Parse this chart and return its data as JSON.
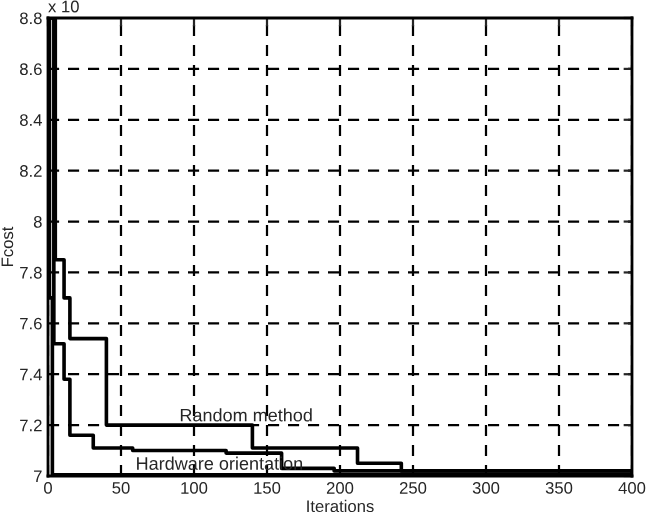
{
  "chart_data": {
    "type": "step",
    "xlabel": "Iterations",
    "ylabel": "Fcost",
    "xlim": [
      0,
      400
    ],
    "ylim": [
      7,
      8.8
    ],
    "xticks": [
      0,
      50,
      100,
      150,
      200,
      250,
      300,
      350,
      400
    ],
    "yticks": [
      7,
      7.2,
      7.4,
      7.6,
      7.8,
      8,
      8.2,
      8.4,
      8.6,
      8.8
    ],
    "grid": true,
    "line_style": "solid",
    "series": [
      {
        "color": "#000000",
        "x": [
          0,
          5,
          11,
          15,
          40,
          140,
          212,
          242,
          400
        ],
        "values": [
          8.8,
          7.85,
          7.7,
          7.54,
          7.2,
          7.11,
          7.05,
          7.02,
          7.015
        ]
      },
      {
        "color": "#000000",
        "x": [
          0,
          4,
          11,
          15,
          31,
          58,
          122,
          160,
          196,
          400
        ],
        "values": [
          8.8,
          7.52,
          7.38,
          7.16,
          7.11,
          7.1,
          7.09,
          7.03,
          7.02,
          7.015
        ]
      },
      {
        "color": "#000000",
        "x": [
          0,
          1,
          3,
          400
        ],
        "values": [
          8.8,
          7.7,
          7.005,
          7.005
        ]
      }
    ],
    "annotations": [
      "x 10",
      {
        "text": "Random method",
        "x": 90,
        "y": 7.2
      },
      {
        "text": "Hardware orientation",
        "x": 60,
        "y": 7.01
      }
    ]
  }
}
